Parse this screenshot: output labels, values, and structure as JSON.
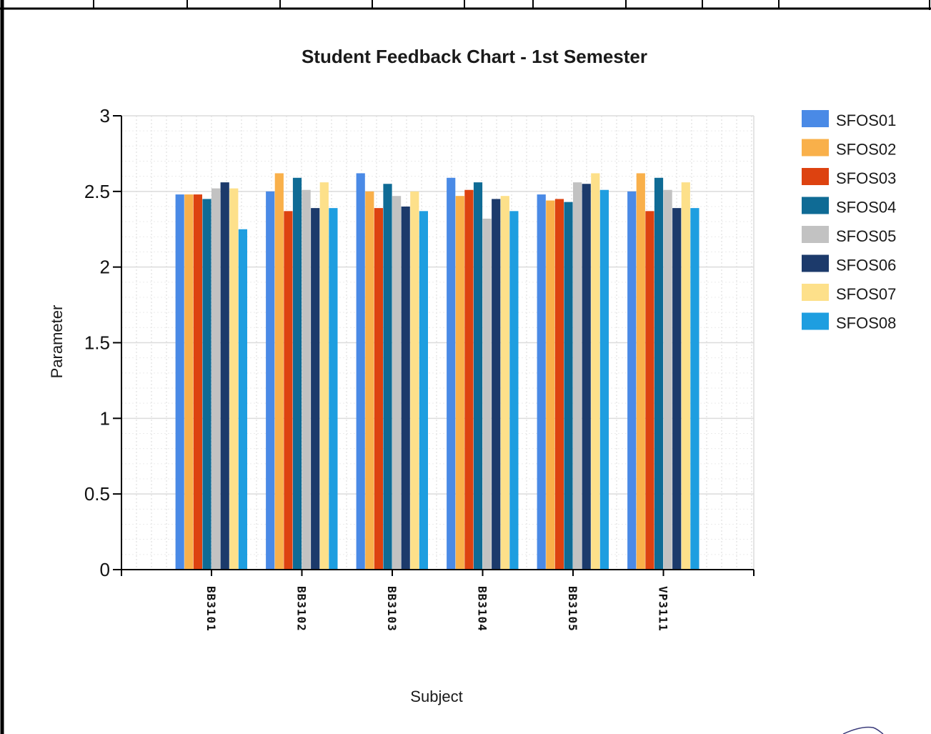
{
  "chart_data": {
    "type": "bar",
    "title": "Student Feedback Chart - 1st Semester",
    "xlabel": "Subject",
    "ylabel": "Parameter",
    "ylim": [
      0,
      3
    ],
    "yticks": [
      "0",
      "0.5",
      "1",
      "1.5",
      "2",
      "2.5",
      "3"
    ],
    "categories": [
      "BB3101",
      "BB3102",
      "BB3103",
      "BB3104",
      "BB3105",
      "VP3111"
    ],
    "grid": true,
    "legend_position": "right",
    "series": [
      {
        "name": "SFOS01",
        "color": "#4a8ae6",
        "values": [
          2.48,
          2.5,
          2.62,
          2.59,
          2.48,
          2.5
        ]
      },
      {
        "name": "SFOS02",
        "color": "#f9b04a",
        "values": [
          2.48,
          2.62,
          2.5,
          2.47,
          2.44,
          2.62
        ]
      },
      {
        "name": "SFOS03",
        "color": "#dd4210",
        "values": [
          2.48,
          2.37,
          2.39,
          2.51,
          2.45,
          2.37
        ]
      },
      {
        "name": "SFOS04",
        "color": "#0f6b95",
        "values": [
          2.45,
          2.59,
          2.55,
          2.56,
          2.43,
          2.59
        ]
      },
      {
        "name": "SFOS05",
        "color": "#c2c2c2",
        "values": [
          2.52,
          2.51,
          2.47,
          2.32,
          2.56,
          2.51
        ]
      },
      {
        "name": "SFOS06",
        "color": "#1c3a6b",
        "values": [
          2.56,
          2.39,
          2.4,
          2.45,
          2.55,
          2.39
        ]
      },
      {
        "name": "SFOS07",
        "color": "#fde08a",
        "values": [
          2.52,
          2.56,
          2.5,
          2.47,
          2.62,
          2.56
        ]
      },
      {
        "name": "SFOS08",
        "color": "#1e9ee0",
        "values": [
          2.25,
          2.39,
          2.37,
          2.37,
          2.51,
          2.39
        ]
      }
    ]
  }
}
